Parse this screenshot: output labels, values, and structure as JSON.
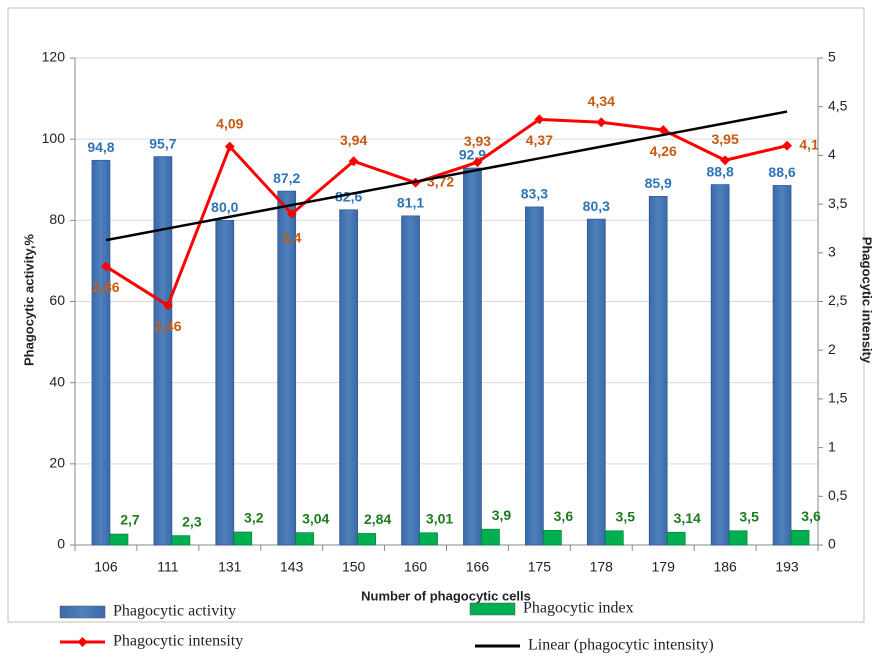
{
  "chart_data": {
    "type": "bar-line",
    "xlabel": "Number of phagocytic cells",
    "ylabel": "Phagocytic activity,%",
    "y2label": "Phagocytic intensity",
    "categories": [
      "106",
      "111",
      "131",
      "143",
      "150",
      "160",
      "166",
      "175",
      "178",
      "179",
      "186",
      "193"
    ],
    "ylim": [
      0,
      120
    ],
    "yticks": [
      0,
      20,
      40,
      60,
      80,
      100,
      120
    ],
    "y2lim": [
      0,
      5
    ],
    "y2ticks": [
      0,
      {
        "value": 0.5,
        "label": "0,5"
      },
      1,
      {
        "value": 1.5,
        "label": "1,5"
      },
      2,
      {
        "value": 2.5,
        "label": "2,5"
      },
      3,
      {
        "value": 3.5,
        "label": "3,5"
      },
      4,
      {
        "value": 4.5,
        "label": "4,5"
      },
      5
    ],
    "grid": true,
    "series": [
      {
        "name": "Phagocytic activity",
        "kind": "bar",
        "color": "#4f81bd",
        "values": [
          94.8,
          95.7,
          80.0,
          87.2,
          82.6,
          81.1,
          92.9,
          83.3,
          80.3,
          85.9,
          88.8,
          88.6
        ],
        "value_labels": [
          "94,8",
          "95,7",
          "80,0",
          "87,2",
          "82,6",
          "81,1",
          "92,9",
          "83,3",
          "80,3",
          "85,9",
          "88,8",
          "88,6"
        ]
      },
      {
        "name": "Phagocytic index",
        "kind": "bar",
        "color": "#00b050",
        "values": [
          2.7,
          2.3,
          3.2,
          3.04,
          2.84,
          3.01,
          3.9,
          3.6,
          3.5,
          3.14,
          3.5,
          3.6
        ],
        "value_labels": [
          "2,7",
          "2,3",
          "3,2",
          "3,04",
          "2,84",
          "3,01",
          "3,9",
          "3,6",
          "3,5",
          "3,14",
          "3,5",
          "3,6"
        ]
      },
      {
        "name": "Phagocytic intensity",
        "kind": "line",
        "axis": "y2",
        "color": "#ff0000",
        "values": [
          2.86,
          2.46,
          4.09,
          3.4,
          3.94,
          3.72,
          3.93,
          4.37,
          4.34,
          4.26,
          3.95,
          4.1
        ],
        "value_labels": [
          "2,86",
          "2,46",
          "4,09",
          "3,4",
          "3,94",
          "3,72",
          "3,93",
          "4,37",
          "4,34",
          "4,26",
          "3,95",
          "4,1"
        ]
      },
      {
        "name": "Linear (phagocytic intensity)",
        "kind": "trend",
        "axis": "y2",
        "color": "#000000",
        "values": [
          3.13,
          3.25,
          3.37,
          3.49,
          3.61,
          3.73,
          3.85,
          3.97,
          4.09,
          4.21,
          4.33,
          4.45
        ]
      }
    ]
  }
}
